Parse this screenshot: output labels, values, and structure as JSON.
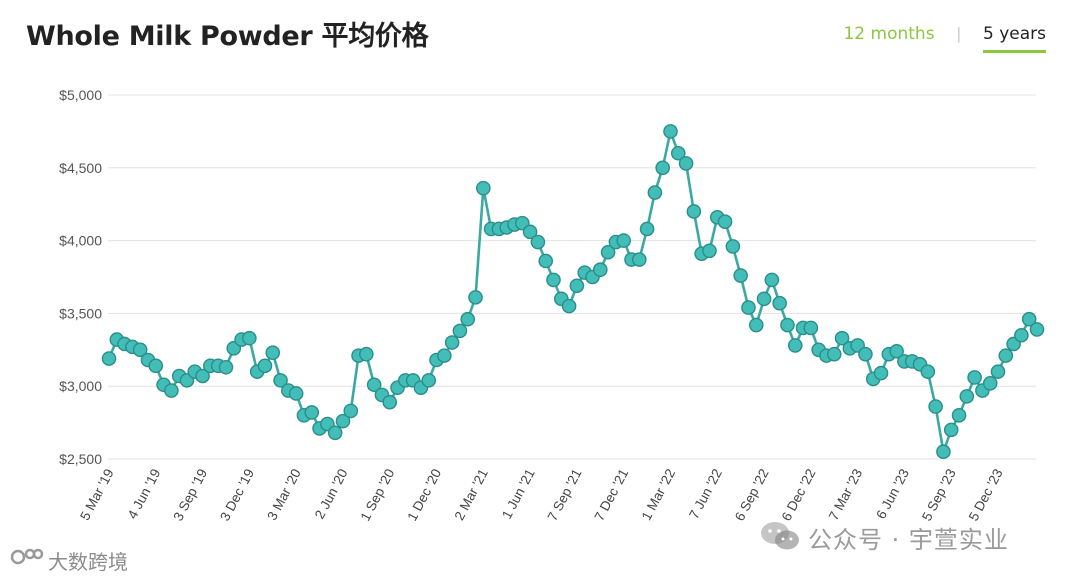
{
  "header": {
    "title": "Whole Milk Powder 平均价格",
    "tabs": [
      {
        "label": "12 months",
        "active": false
      },
      {
        "label": "5 years",
        "active": true
      }
    ]
  },
  "colors": {
    "line": "#3aa9a4",
    "marker_fill": "#43bdb7",
    "marker_stroke": "#2a8e8a",
    "accent": "#8dc63f",
    "grid": "#e3e3e3"
  },
  "chart_data": {
    "type": "line",
    "title": "Whole Milk Powder 平均价格",
    "xlabel": "",
    "ylabel": "",
    "ylim": [
      2500,
      5000
    ],
    "y_ticks": [
      {
        "value": 5000,
        "label": "$5,000"
      },
      {
        "value": 4500,
        "label": "$4,500"
      },
      {
        "value": 4000,
        "label": "$4,000"
      },
      {
        "value": 3500,
        "label": "$3,500"
      },
      {
        "value": 3000,
        "label": "$3,000"
      },
      {
        "value": 2500,
        "label": "$2,500"
      }
    ],
    "x_tick_labels": [
      {
        "index": 0,
        "label": "5 Mar '19"
      },
      {
        "index": 6,
        "label": "4 Jun '19"
      },
      {
        "index": 12,
        "label": "3 Sep '19"
      },
      {
        "index": 18,
        "label": "3 Dec '19"
      },
      {
        "index": 24,
        "label": "3 Mar '20"
      },
      {
        "index": 30,
        "label": "2 Jun '20"
      },
      {
        "index": 36,
        "label": "1 Sep '20"
      },
      {
        "index": 42,
        "label": "1 Dec '20"
      },
      {
        "index": 48,
        "label": "2 Mar '21"
      },
      {
        "index": 54,
        "label": "1 Jun '21"
      },
      {
        "index": 60,
        "label": "7 Sep '21"
      },
      {
        "index": 66,
        "label": "7 Dec '21"
      },
      {
        "index": 72,
        "label": "1 Mar '22"
      },
      {
        "index": 78,
        "label": "7 Jun '22"
      },
      {
        "index": 84,
        "label": "6 Sep '22"
      },
      {
        "index": 90,
        "label": "6 Dec '22"
      },
      {
        "index": 96,
        "label": "7 Mar '23"
      },
      {
        "index": 102,
        "label": "6 Jun '23"
      },
      {
        "index": 108,
        "label": "5 Sep '23"
      },
      {
        "index": 114,
        "label": "5 Dec '23"
      }
    ],
    "series": [
      {
        "values": [
          3190,
          3320,
          3290,
          3270,
          3250,
          3180,
          3140,
          3010,
          2970,
          3070,
          3040,
          3100,
          3070,
          3140,
          3140,
          3130,
          3260,
          3320,
          3330,
          3100,
          3140,
          3230,
          3040,
          2970,
          2950,
          2800,
          2820,
          2710,
          2740,
          2680,
          2760,
          2830,
          3210,
          3220,
          3010,
          2940,
          2890,
          2990,
          3040,
          3040,
          2990,
          3040,
          3180,
          3210,
          3300,
          3380,
          3460,
          3610,
          4360,
          4080,
          4080,
          4090,
          4110,
          4120,
          4060,
          3990,
          3860,
          3730,
          3600,
          3550,
          3690,
          3780,
          3750,
          3800,
          3920,
          3990,
          4000,
          3870,
          3870,
          4080,
          4330,
          4500,
          4750,
          4600,
          4530,
          4200,
          3910,
          3930,
          4160,
          4130,
          3960,
          3760,
          3540,
          3420,
          3600,
          3730,
          3570,
          3420,
          3280,
          3400,
          3400,
          3250,
          3210,
          3220,
          3330,
          3260,
          3280,
          3220,
          3050,
          3090,
          3220,
          3240,
          3170,
          3170,
          3150,
          3100,
          2860,
          2550,
          2700,
          2800,
          2930,
          3060,
          2970,
          3020,
          3100,
          3210,
          3290,
          3350,
          3460,
          3390
        ]
      }
    ]
  },
  "watermarks": {
    "left_text": "大数跨境",
    "right_text": "公众号 · 宇萱实业"
  }
}
